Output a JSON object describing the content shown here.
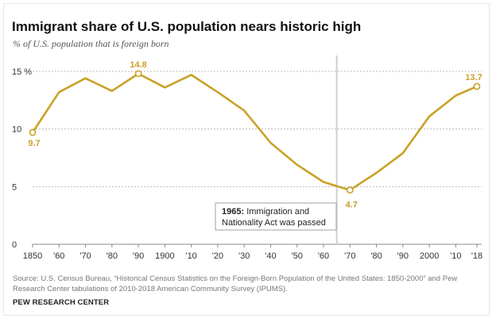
{
  "chart_data": {
    "type": "line",
    "title": "Immigrant share of U.S. population nears historic high",
    "subtitle": "% of U.S. population that is foreign born",
    "x": [
      1850,
      1860,
      1870,
      1880,
      1890,
      1900,
      1910,
      1920,
      1930,
      1940,
      1950,
      1960,
      1970,
      1980,
      1990,
      2000,
      2010,
      2016,
      2018
    ],
    "series": [
      {
        "values": [
          9.7,
          13.2,
          14.4,
          13.3,
          14.8,
          13.6,
          14.7,
          13.2,
          11.6,
          8.8,
          6.9,
          5.4,
          4.7,
          6.2,
          7.9,
          11.1,
          12.9,
          13.5,
          13.7
        ]
      }
    ],
    "ylim": [
      0,
      15
    ],
    "yticks": [
      0,
      5,
      10,
      15
    ],
    "ytick_labels": [
      "0",
      "5",
      "10",
      "15 %"
    ],
    "xticks": [
      1850,
      1860,
      1870,
      1880,
      1890,
      1900,
      1910,
      1920,
      1930,
      1940,
      1950,
      1960,
      1970,
      1980,
      1990,
      2000,
      2010,
      2018
    ],
    "xtick_labels": [
      "1850",
      "'60",
      "'70",
      "'80",
      "'90",
      "1900",
      "'10",
      "'20",
      "'30",
      "'40",
      "'50",
      "'60",
      "'70",
      "'80",
      "'90",
      "2000",
      "'10",
      "'18"
    ],
    "marked_points": [
      {
        "x": 1850,
        "y": 9.7,
        "label": "9.7"
      },
      {
        "x": 1890,
        "y": 14.8,
        "label": "14.8"
      },
      {
        "x": 1970,
        "y": 4.7,
        "label": "4.7"
      },
      {
        "x": 2018,
        "y": 13.7,
        "label": "13.7"
      }
    ],
    "annotation": {
      "x": 1965,
      "bold": "1965:",
      "line1": "Immigration and",
      "line2": "Nationality Act was passed"
    },
    "grid": true,
    "line_color": "#c9a227"
  },
  "source": "Source: U.S. Census Bureau, “Historical Census Statistics on the Foreign-Born Population of the United States: 1850-2000” and Pew Research Center tabulations of 2010-2018 American Community Survey (IPUMS).",
  "brand": "PEW RESEARCH CENTER"
}
